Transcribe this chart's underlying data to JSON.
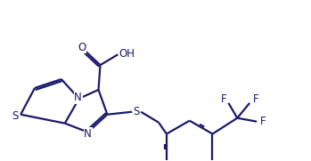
{
  "bg_color": "#ffffff",
  "line_color": "#1a1a6a",
  "line_width": 1.6,
  "font_size": 8.5,
  "figsize": [
    3.49,
    1.81
  ],
  "dpi": 100,
  "xlim": [
    0,
    3.49
  ],
  "ylim": [
    0,
    1.81
  ]
}
